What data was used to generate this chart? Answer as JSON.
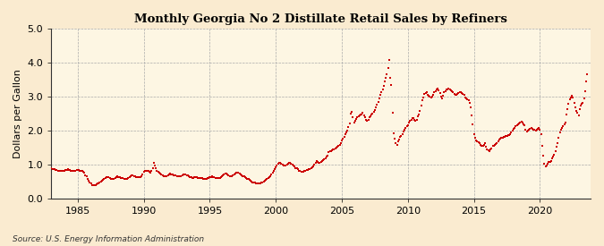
{
  "title": "Monthly Georgia No 2 Distillate Retail Sales by Refiners",
  "ylabel": "Dollars per Gallon",
  "source": "Source: U.S. Energy Information Administration",
  "bg_color": "#faebd0",
  "plot_bg_color": "#fdf6e3",
  "line_color": "#cc0000",
  "xlim_start": 1983.0,
  "xlim_end": 2023.83,
  "ylim": [
    0.0,
    5.0
  ],
  "yticks": [
    0.0,
    1.0,
    2.0,
    3.0,
    4.0,
    5.0
  ],
  "xticks": [
    1985,
    1990,
    1995,
    2000,
    2005,
    2010,
    2015,
    2020
  ],
  "data": [
    [
      1983.0,
      0.88
    ],
    [
      1983.083,
      0.87
    ],
    [
      1983.167,
      0.86
    ],
    [
      1983.25,
      0.85
    ],
    [
      1983.333,
      0.84
    ],
    [
      1983.417,
      0.83
    ],
    [
      1983.5,
      0.82
    ],
    [
      1983.583,
      0.81
    ],
    [
      1983.667,
      0.8
    ],
    [
      1983.75,
      0.8
    ],
    [
      1983.833,
      0.8
    ],
    [
      1983.917,
      0.8
    ],
    [
      1984.0,
      0.82
    ],
    [
      1984.083,
      0.83
    ],
    [
      1984.167,
      0.84
    ],
    [
      1984.25,
      0.85
    ],
    [
      1984.333,
      0.84
    ],
    [
      1984.417,
      0.83
    ],
    [
      1984.5,
      0.82
    ],
    [
      1984.583,
      0.82
    ],
    [
      1984.667,
      0.81
    ],
    [
      1984.75,
      0.82
    ],
    [
      1984.833,
      0.82
    ],
    [
      1984.917,
      0.84
    ],
    [
      1985.0,
      0.84
    ],
    [
      1985.083,
      0.83
    ],
    [
      1985.167,
      0.82
    ],
    [
      1985.25,
      0.81
    ],
    [
      1985.333,
      0.8
    ],
    [
      1985.417,
      0.79
    ],
    [
      1985.5,
      0.75
    ],
    [
      1985.583,
      0.68
    ],
    [
      1985.667,
      0.65
    ],
    [
      1985.75,
      0.58
    ],
    [
      1985.833,
      0.53
    ],
    [
      1985.917,
      0.48
    ],
    [
      1986.0,
      0.43
    ],
    [
      1986.083,
      0.4
    ],
    [
      1986.167,
      0.38
    ],
    [
      1986.25,
      0.39
    ],
    [
      1986.333,
      0.4
    ],
    [
      1986.417,
      0.42
    ],
    [
      1986.5,
      0.43
    ],
    [
      1986.583,
      0.44
    ],
    [
      1986.667,
      0.46
    ],
    [
      1986.75,
      0.49
    ],
    [
      1986.833,
      0.51
    ],
    [
      1986.917,
      0.54
    ],
    [
      1987.0,
      0.57
    ],
    [
      1987.083,
      0.6
    ],
    [
      1987.167,
      0.62
    ],
    [
      1987.25,
      0.63
    ],
    [
      1987.333,
      0.62
    ],
    [
      1987.417,
      0.6
    ],
    [
      1987.5,
      0.58
    ],
    [
      1987.583,
      0.57
    ],
    [
      1987.667,
      0.57
    ],
    [
      1987.75,
      0.58
    ],
    [
      1987.833,
      0.6
    ],
    [
      1987.917,
      0.63
    ],
    [
      1988.0,
      0.64
    ],
    [
      1988.083,
      0.63
    ],
    [
      1988.167,
      0.62
    ],
    [
      1988.25,
      0.61
    ],
    [
      1988.333,
      0.6
    ],
    [
      1988.417,
      0.59
    ],
    [
      1988.5,
      0.57
    ],
    [
      1988.583,
      0.57
    ],
    [
      1988.667,
      0.57
    ],
    [
      1988.75,
      0.58
    ],
    [
      1988.833,
      0.6
    ],
    [
      1988.917,
      0.62
    ],
    [
      1989.0,
      0.66
    ],
    [
      1989.083,
      0.68
    ],
    [
      1989.167,
      0.68
    ],
    [
      1989.25,
      0.66
    ],
    [
      1989.333,
      0.64
    ],
    [
      1989.417,
      0.63
    ],
    [
      1989.5,
      0.62
    ],
    [
      1989.583,
      0.62
    ],
    [
      1989.667,
      0.62
    ],
    [
      1989.75,
      0.63
    ],
    [
      1989.833,
      0.65
    ],
    [
      1989.917,
      0.7
    ],
    [
      1990.0,
      0.78
    ],
    [
      1990.083,
      0.8
    ],
    [
      1990.167,
      0.82
    ],
    [
      1990.25,
      0.82
    ],
    [
      1990.333,
      0.8
    ],
    [
      1990.417,
      0.78
    ],
    [
      1990.5,
      0.76
    ],
    [
      1990.583,
      0.8
    ],
    [
      1990.667,
      0.9
    ],
    [
      1990.75,
      1.05
    ],
    [
      1990.833,
      0.98
    ],
    [
      1990.917,
      0.9
    ],
    [
      1991.0,
      0.82
    ],
    [
      1991.083,
      0.78
    ],
    [
      1991.167,
      0.75
    ],
    [
      1991.25,
      0.72
    ],
    [
      1991.333,
      0.7
    ],
    [
      1991.417,
      0.68
    ],
    [
      1991.5,
      0.66
    ],
    [
      1991.583,
      0.65
    ],
    [
      1991.667,
      0.65
    ],
    [
      1991.75,
      0.66
    ],
    [
      1991.833,
      0.68
    ],
    [
      1991.917,
      0.7
    ],
    [
      1992.0,
      0.72
    ],
    [
      1992.083,
      0.71
    ],
    [
      1992.167,
      0.7
    ],
    [
      1992.25,
      0.69
    ],
    [
      1992.333,
      0.68
    ],
    [
      1992.417,
      0.67
    ],
    [
      1992.5,
      0.65
    ],
    [
      1992.583,
      0.64
    ],
    [
      1992.667,
      0.64
    ],
    [
      1992.75,
      0.65
    ],
    [
      1992.833,
      0.66
    ],
    [
      1992.917,
      0.68
    ],
    [
      1993.0,
      0.7
    ],
    [
      1993.083,
      0.7
    ],
    [
      1993.167,
      0.7
    ],
    [
      1993.25,
      0.69
    ],
    [
      1993.333,
      0.67
    ],
    [
      1993.417,
      0.65
    ],
    [
      1993.5,
      0.63
    ],
    [
      1993.583,
      0.62
    ],
    [
      1993.667,
      0.61
    ],
    [
      1993.75,
      0.61
    ],
    [
      1993.833,
      0.62
    ],
    [
      1993.917,
      0.63
    ],
    [
      1994.0,
      0.62
    ],
    [
      1994.083,
      0.61
    ],
    [
      1994.167,
      0.61
    ],
    [
      1994.25,
      0.6
    ],
    [
      1994.333,
      0.6
    ],
    [
      1994.417,
      0.59
    ],
    [
      1994.5,
      0.58
    ],
    [
      1994.583,
      0.57
    ],
    [
      1994.667,
      0.57
    ],
    [
      1994.75,
      0.58
    ],
    [
      1994.833,
      0.59
    ],
    [
      1994.917,
      0.6
    ],
    [
      1995.0,
      0.62
    ],
    [
      1995.083,
      0.63
    ],
    [
      1995.167,
      0.64
    ],
    [
      1995.25,
      0.63
    ],
    [
      1995.333,
      0.62
    ],
    [
      1995.417,
      0.61
    ],
    [
      1995.5,
      0.6
    ],
    [
      1995.583,
      0.59
    ],
    [
      1995.667,
      0.59
    ],
    [
      1995.75,
      0.6
    ],
    [
      1995.833,
      0.62
    ],
    [
      1995.917,
      0.64
    ],
    [
      1996.0,
      0.68
    ],
    [
      1996.083,
      0.7
    ],
    [
      1996.167,
      0.72
    ],
    [
      1996.25,
      0.72
    ],
    [
      1996.333,
      0.7
    ],
    [
      1996.417,
      0.68
    ],
    [
      1996.5,
      0.66
    ],
    [
      1996.583,
      0.65
    ],
    [
      1996.667,
      0.65
    ],
    [
      1996.75,
      0.67
    ],
    [
      1996.833,
      0.7
    ],
    [
      1996.917,
      0.73
    ],
    [
      1997.0,
      0.75
    ],
    [
      1997.083,
      0.76
    ],
    [
      1997.167,
      0.75
    ],
    [
      1997.25,
      0.73
    ],
    [
      1997.333,
      0.71
    ],
    [
      1997.417,
      0.69
    ],
    [
      1997.5,
      0.66
    ],
    [
      1997.583,
      0.64
    ],
    [
      1997.667,
      0.62
    ],
    [
      1997.75,
      0.6
    ],
    [
      1997.833,
      0.58
    ],
    [
      1997.917,
      0.57
    ],
    [
      1998.0,
      0.54
    ],
    [
      1998.083,
      0.52
    ],
    [
      1998.167,
      0.5
    ],
    [
      1998.25,
      0.48
    ],
    [
      1998.333,
      0.47
    ],
    [
      1998.417,
      0.46
    ],
    [
      1998.5,
      0.45
    ],
    [
      1998.583,
      0.44
    ],
    [
      1998.667,
      0.44
    ],
    [
      1998.75,
      0.44
    ],
    [
      1998.833,
      0.45
    ],
    [
      1998.917,
      0.46
    ],
    [
      1999.0,
      0.48
    ],
    [
      1999.083,
      0.5
    ],
    [
      1999.167,
      0.52
    ],
    [
      1999.25,
      0.55
    ],
    [
      1999.333,
      0.57
    ],
    [
      1999.417,
      0.59
    ],
    [
      1999.5,
      0.62
    ],
    [
      1999.583,
      0.66
    ],
    [
      1999.667,
      0.7
    ],
    [
      1999.75,
      0.75
    ],
    [
      1999.833,
      0.8
    ],
    [
      1999.917,
      0.85
    ],
    [
      2000.0,
      0.92
    ],
    [
      2000.083,
      0.98
    ],
    [
      2000.167,
      1.02
    ],
    [
      2000.25,
      1.05
    ],
    [
      2000.333,
      1.05
    ],
    [
      2000.417,
      1.03
    ],
    [
      2000.5,
      1.0
    ],
    [
      2000.583,
      0.98
    ],
    [
      2000.667,
      0.97
    ],
    [
      2000.75,
      0.98
    ],
    [
      2000.833,
      1.0
    ],
    [
      2000.917,
      1.03
    ],
    [
      2001.0,
      1.05
    ],
    [
      2001.083,
      1.04
    ],
    [
      2001.167,
      1.02
    ],
    [
      2001.25,
      1.0
    ],
    [
      2001.333,
      0.98
    ],
    [
      2001.417,
      0.95
    ],
    [
      2001.5,
      0.9
    ],
    [
      2001.583,
      0.88
    ],
    [
      2001.667,
      0.85
    ],
    [
      2001.75,
      0.82
    ],
    [
      2001.833,
      0.8
    ],
    [
      2001.917,
      0.78
    ],
    [
      2002.0,
      0.78
    ],
    [
      2002.083,
      0.79
    ],
    [
      2002.167,
      0.8
    ],
    [
      2002.25,
      0.82
    ],
    [
      2002.333,
      0.83
    ],
    [
      2002.417,
      0.84
    ],
    [
      2002.5,
      0.85
    ],
    [
      2002.583,
      0.87
    ],
    [
      2002.667,
      0.89
    ],
    [
      2002.75,
      0.92
    ],
    [
      2002.833,
      0.95
    ],
    [
      2002.917,
      0.99
    ],
    [
      2003.0,
      1.05
    ],
    [
      2003.083,
      1.1
    ],
    [
      2003.167,
      1.08
    ],
    [
      2003.25,
      1.05
    ],
    [
      2003.333,
      1.05
    ],
    [
      2003.417,
      1.07
    ],
    [
      2003.5,
      1.1
    ],
    [
      2003.583,
      1.12
    ],
    [
      2003.667,
      1.15
    ],
    [
      2003.75,
      1.18
    ],
    [
      2003.833,
      1.22
    ],
    [
      2003.917,
      1.27
    ],
    [
      2004.0,
      1.35
    ],
    [
      2004.083,
      1.38
    ],
    [
      2004.167,
      1.4
    ],
    [
      2004.25,
      1.42
    ],
    [
      2004.333,
      1.43
    ],
    [
      2004.417,
      1.45
    ],
    [
      2004.5,
      1.48
    ],
    [
      2004.583,
      1.5
    ],
    [
      2004.667,
      1.52
    ],
    [
      2004.75,
      1.55
    ],
    [
      2004.833,
      1.58
    ],
    [
      2004.917,
      1.62
    ],
    [
      2005.0,
      1.7
    ],
    [
      2005.083,
      1.75
    ],
    [
      2005.167,
      1.8
    ],
    [
      2005.25,
      1.9
    ],
    [
      2005.333,
      1.95
    ],
    [
      2005.417,
      2.0
    ],
    [
      2005.5,
      2.1
    ],
    [
      2005.583,
      2.2
    ],
    [
      2005.667,
      2.5
    ],
    [
      2005.75,
      2.55
    ],
    [
      2005.833,
      2.38
    ],
    [
      2005.917,
      2.22
    ],
    [
      2006.0,
      2.28
    ],
    [
      2006.083,
      2.35
    ],
    [
      2006.167,
      2.4
    ],
    [
      2006.25,
      2.42
    ],
    [
      2006.333,
      2.44
    ],
    [
      2006.417,
      2.46
    ],
    [
      2006.5,
      2.48
    ],
    [
      2006.583,
      2.52
    ],
    [
      2006.667,
      2.44
    ],
    [
      2006.75,
      2.38
    ],
    [
      2006.833,
      2.32
    ],
    [
      2006.917,
      2.28
    ],
    [
      2007.0,
      2.32
    ],
    [
      2007.083,
      2.38
    ],
    [
      2007.167,
      2.42
    ],
    [
      2007.25,
      2.46
    ],
    [
      2007.333,
      2.5
    ],
    [
      2007.417,
      2.55
    ],
    [
      2007.5,
      2.6
    ],
    [
      2007.583,
      2.68
    ],
    [
      2007.667,
      2.75
    ],
    [
      2007.75,
      2.85
    ],
    [
      2007.833,
      2.95
    ],
    [
      2007.917,
      3.05
    ],
    [
      2008.0,
      3.12
    ],
    [
      2008.083,
      3.22
    ],
    [
      2008.167,
      3.32
    ],
    [
      2008.25,
      3.45
    ],
    [
      2008.333,
      3.55
    ],
    [
      2008.417,
      3.65
    ],
    [
      2008.5,
      3.85
    ],
    [
      2008.583,
      4.08
    ],
    [
      2008.667,
      3.55
    ],
    [
      2008.75,
      3.35
    ],
    [
      2008.833,
      2.52
    ],
    [
      2008.917,
      1.92
    ],
    [
      2009.0,
      1.75
    ],
    [
      2009.083,
      1.62
    ],
    [
      2009.167,
      1.58
    ],
    [
      2009.25,
      1.68
    ],
    [
      2009.333,
      1.74
    ],
    [
      2009.417,
      1.8
    ],
    [
      2009.5,
      1.85
    ],
    [
      2009.583,
      1.9
    ],
    [
      2009.667,
      1.96
    ],
    [
      2009.75,
      2.02
    ],
    [
      2009.833,
      2.08
    ],
    [
      2009.917,
      2.12
    ],
    [
      2010.0,
      2.16
    ],
    [
      2010.083,
      2.22
    ],
    [
      2010.167,
      2.28
    ],
    [
      2010.25,
      2.32
    ],
    [
      2010.333,
      2.36
    ],
    [
      2010.417,
      2.36
    ],
    [
      2010.5,
      2.3
    ],
    [
      2010.583,
      2.28
    ],
    [
      2010.667,
      2.3
    ],
    [
      2010.75,
      2.42
    ],
    [
      2010.833,
      2.48
    ],
    [
      2010.917,
      2.58
    ],
    [
      2011.0,
      2.72
    ],
    [
      2011.083,
      2.88
    ],
    [
      2011.167,
      2.98
    ],
    [
      2011.25,
      3.08
    ],
    [
      2011.333,
      3.1
    ],
    [
      2011.417,
      3.12
    ],
    [
      2011.5,
      3.06
    ],
    [
      2011.583,
      3.02
    ],
    [
      2011.667,
      3.0
    ],
    [
      2011.75,
      2.96
    ],
    [
      2011.833,
      3.0
    ],
    [
      2011.917,
      3.06
    ],
    [
      2012.0,
      3.12
    ],
    [
      2012.083,
      3.16
    ],
    [
      2012.167,
      3.22
    ],
    [
      2012.25,
      3.24
    ],
    [
      2012.333,
      3.18
    ],
    [
      2012.417,
      3.1
    ],
    [
      2012.5,
      3.0
    ],
    [
      2012.583,
      2.94
    ],
    [
      2012.667,
      3.02
    ],
    [
      2012.75,
      3.12
    ],
    [
      2012.833,
      3.16
    ],
    [
      2012.917,
      3.2
    ],
    [
      2013.0,
      3.22
    ],
    [
      2013.083,
      3.24
    ],
    [
      2013.167,
      3.2
    ],
    [
      2013.25,
      3.18
    ],
    [
      2013.333,
      3.16
    ],
    [
      2013.417,
      3.12
    ],
    [
      2013.5,
      3.08
    ],
    [
      2013.583,
      3.06
    ],
    [
      2013.667,
      3.06
    ],
    [
      2013.75,
      3.08
    ],
    [
      2013.833,
      3.1
    ],
    [
      2013.917,
      3.12
    ],
    [
      2014.0,
      3.14
    ],
    [
      2014.083,
      3.1
    ],
    [
      2014.167,
      3.08
    ],
    [
      2014.25,
      3.04
    ],
    [
      2014.333,
      2.98
    ],
    [
      2014.417,
      2.95
    ],
    [
      2014.5,
      2.92
    ],
    [
      2014.583,
      2.88
    ],
    [
      2014.667,
      2.82
    ],
    [
      2014.75,
      2.68
    ],
    [
      2014.833,
      2.45
    ],
    [
      2014.917,
      2.18
    ],
    [
      2015.0,
      1.88
    ],
    [
      2015.083,
      1.78
    ],
    [
      2015.167,
      1.7
    ],
    [
      2015.25,
      1.68
    ],
    [
      2015.333,
      1.66
    ],
    [
      2015.417,
      1.62
    ],
    [
      2015.5,
      1.58
    ],
    [
      2015.583,
      1.56
    ],
    [
      2015.667,
      1.54
    ],
    [
      2015.75,
      1.58
    ],
    [
      2015.833,
      1.62
    ],
    [
      2015.917,
      1.52
    ],
    [
      2016.0,
      1.45
    ],
    [
      2016.083,
      1.42
    ],
    [
      2016.167,
      1.4
    ],
    [
      2016.25,
      1.44
    ],
    [
      2016.333,
      1.48
    ],
    [
      2016.417,
      1.54
    ],
    [
      2016.5,
      1.56
    ],
    [
      2016.583,
      1.58
    ],
    [
      2016.667,
      1.6
    ],
    [
      2016.75,
      1.63
    ],
    [
      2016.833,
      1.68
    ],
    [
      2016.917,
      1.74
    ],
    [
      2017.0,
      1.76
    ],
    [
      2017.083,
      1.78
    ],
    [
      2017.167,
      1.78
    ],
    [
      2017.25,
      1.8
    ],
    [
      2017.333,
      1.82
    ],
    [
      2017.417,
      1.83
    ],
    [
      2017.5,
      1.84
    ],
    [
      2017.583,
      1.86
    ],
    [
      2017.667,
      1.87
    ],
    [
      2017.75,
      1.9
    ],
    [
      2017.833,
      1.95
    ],
    [
      2017.917,
      2.0
    ],
    [
      2018.0,
      2.04
    ],
    [
      2018.083,
      2.08
    ],
    [
      2018.167,
      2.12
    ],
    [
      2018.25,
      2.16
    ],
    [
      2018.333,
      2.18
    ],
    [
      2018.417,
      2.2
    ],
    [
      2018.5,
      2.24
    ],
    [
      2018.583,
      2.26
    ],
    [
      2018.667,
      2.22
    ],
    [
      2018.75,
      2.18
    ],
    [
      2018.833,
      2.14
    ],
    [
      2018.917,
      2.02
    ],
    [
      2019.0,
      1.98
    ],
    [
      2019.083,
      2.0
    ],
    [
      2019.167,
      2.03
    ],
    [
      2019.25,
      2.06
    ],
    [
      2019.333,
      2.08
    ],
    [
      2019.417,
      2.06
    ],
    [
      2019.5,
      2.03
    ],
    [
      2019.583,
      2.01
    ],
    [
      2019.667,
      2.0
    ],
    [
      2019.75,
      2.03
    ],
    [
      2019.833,
      2.06
    ],
    [
      2019.917,
      2.08
    ],
    [
      2020.0,
      2.03
    ],
    [
      2020.083,
      1.88
    ],
    [
      2020.167,
      1.55
    ],
    [
      2020.25,
      1.25
    ],
    [
      2020.333,
      1.02
    ],
    [
      2020.417,
      0.93
    ],
    [
      2020.5,
      0.98
    ],
    [
      2020.583,
      1.02
    ],
    [
      2020.667,
      1.06
    ],
    [
      2020.75,
      1.08
    ],
    [
      2020.833,
      1.1
    ],
    [
      2020.917,
      1.18
    ],
    [
      2021.0,
      1.23
    ],
    [
      2021.083,
      1.28
    ],
    [
      2021.167,
      1.38
    ],
    [
      2021.25,
      1.52
    ],
    [
      2021.333,
      1.63
    ],
    [
      2021.417,
      1.78
    ],
    [
      2021.5,
      1.93
    ],
    [
      2021.583,
      2.03
    ],
    [
      2021.667,
      2.08
    ],
    [
      2021.75,
      2.12
    ],
    [
      2021.833,
      2.18
    ],
    [
      2021.917,
      2.22
    ],
    [
      2022.0,
      2.48
    ],
    [
      2022.083,
      2.62
    ],
    [
      2022.167,
      2.78
    ],
    [
      2022.25,
      2.93
    ],
    [
      2022.333,
      2.98
    ],
    [
      2022.417,
      3.02
    ],
    [
      2022.5,
      2.96
    ],
    [
      2022.583,
      2.82
    ],
    [
      2022.667,
      2.68
    ],
    [
      2022.75,
      2.58
    ],
    [
      2022.833,
      2.52
    ],
    [
      2022.917,
      2.45
    ],
    [
      2023.0,
      2.62
    ],
    [
      2023.083,
      2.72
    ],
    [
      2023.167,
      2.78
    ],
    [
      2023.25,
      2.82
    ],
    [
      2023.333,
      2.95
    ],
    [
      2023.417,
      3.15
    ],
    [
      2023.5,
      3.45
    ],
    [
      2023.583,
      3.65
    ]
  ]
}
